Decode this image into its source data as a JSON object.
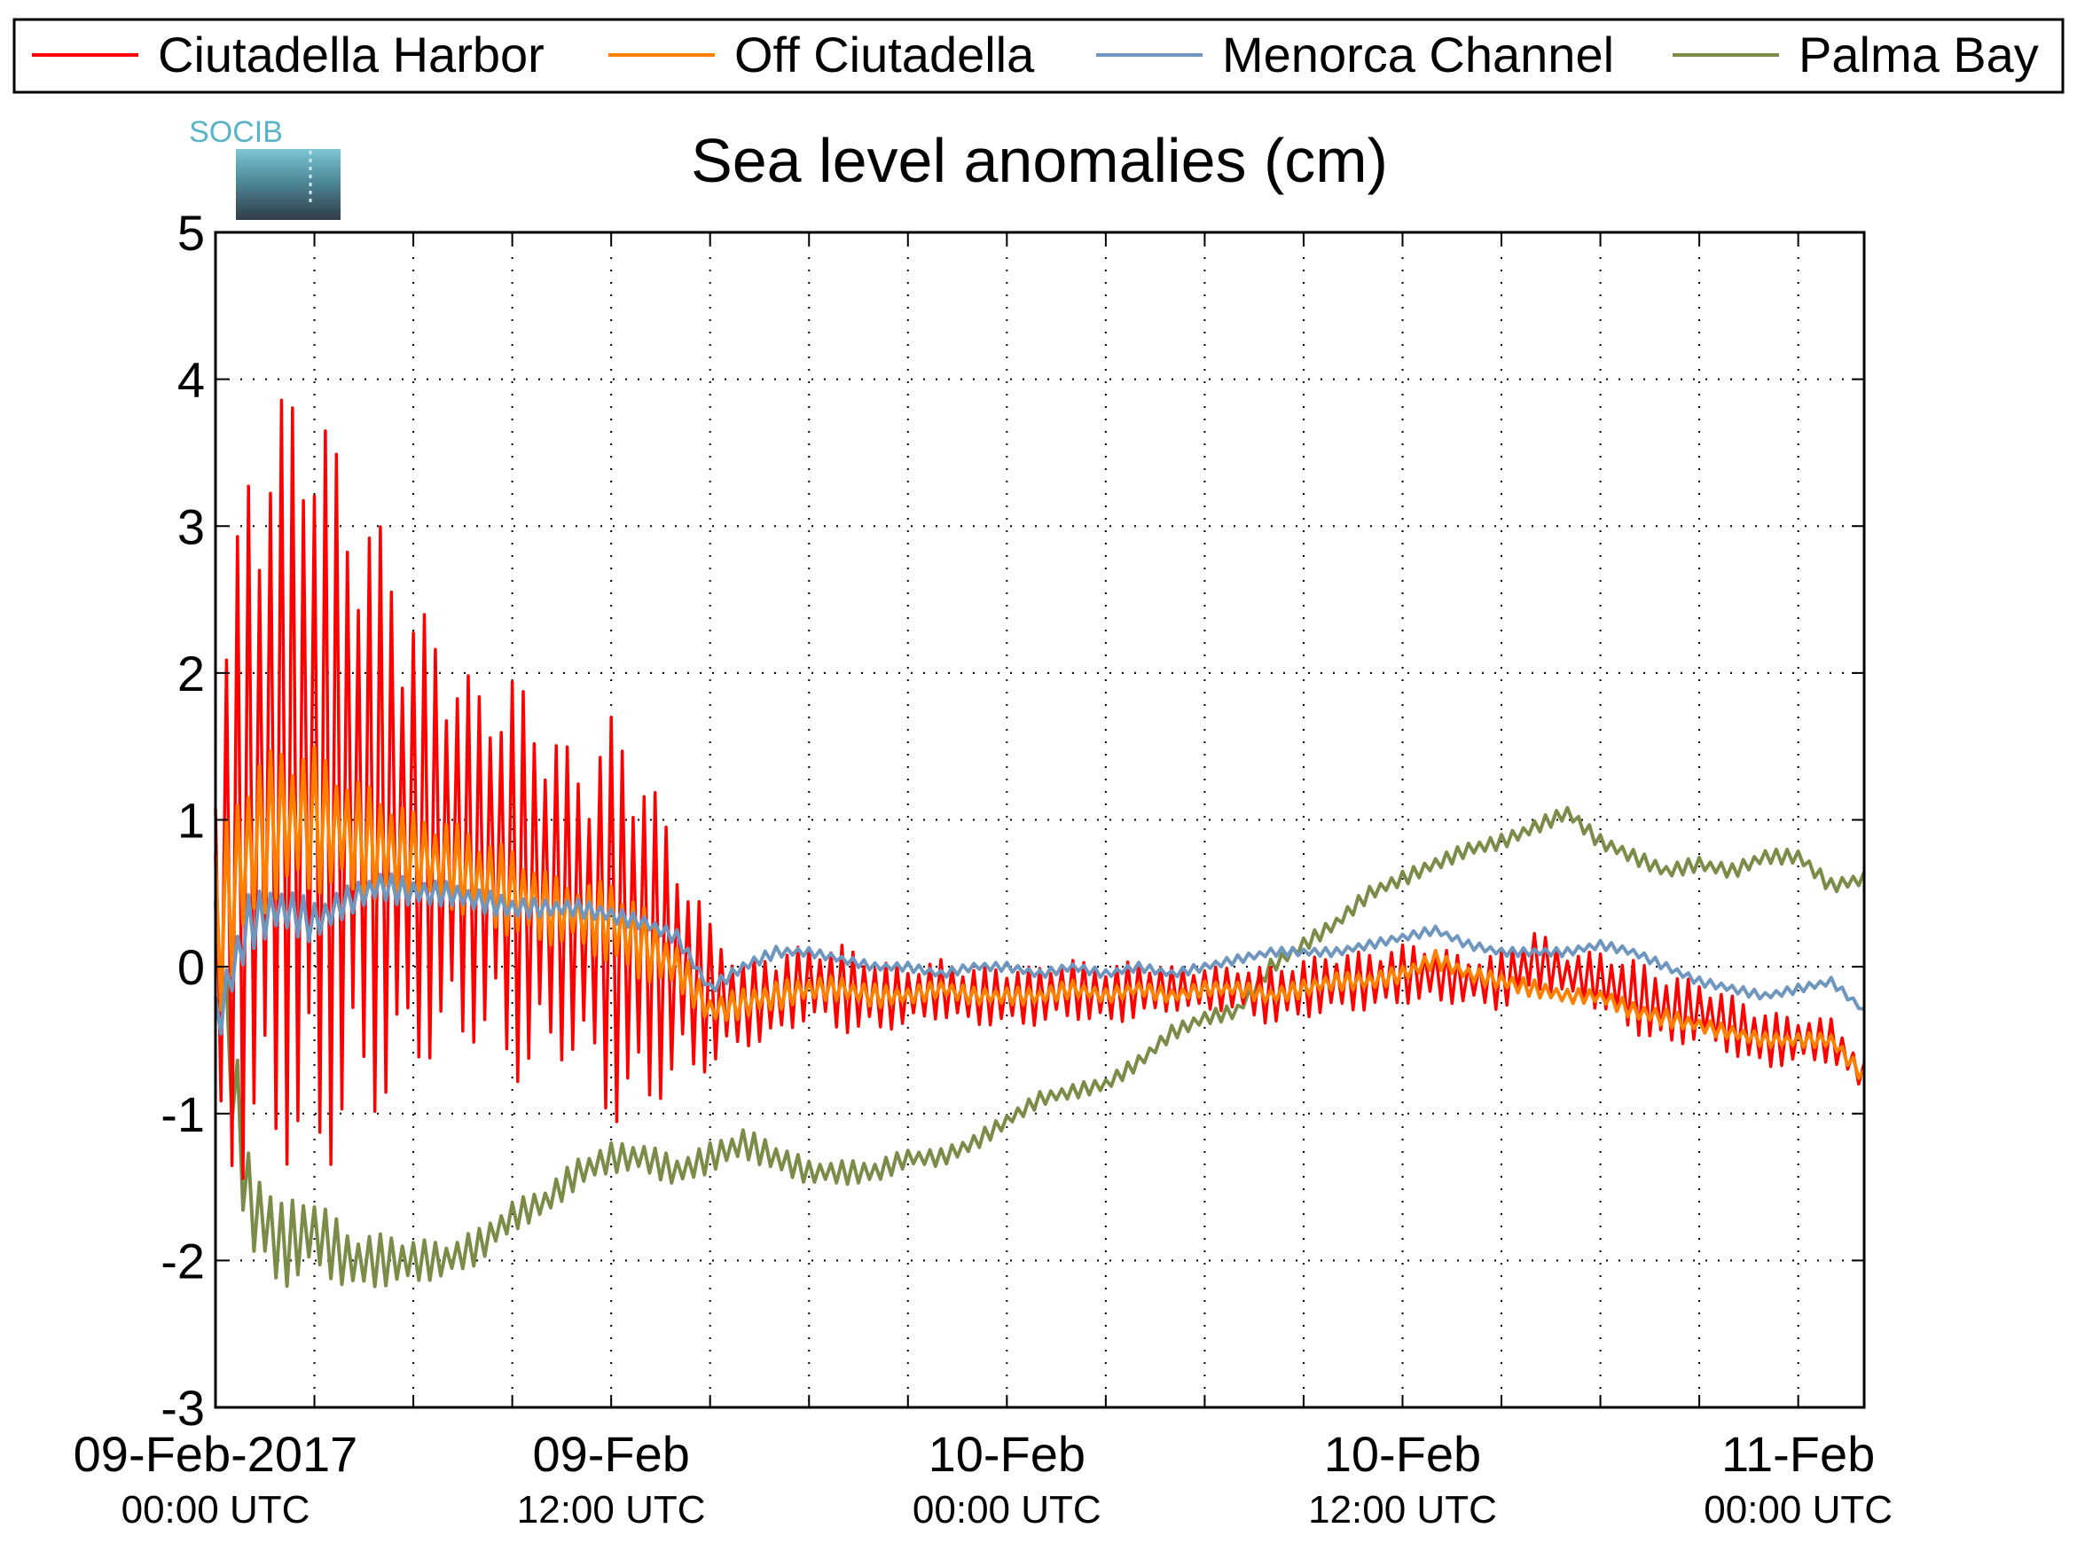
{
  "chart_data": {
    "type": "line",
    "title": "Sea level anomalies (cm)",
    "logo_text": "SOCIB",
    "xlabel": "",
    "ylabel": "",
    "ylim": [
      -3,
      5
    ],
    "yticks": [
      -3,
      -2,
      -1,
      0,
      1,
      2,
      3,
      4,
      5
    ],
    "xlim": [
      "2017-02-09 00:00",
      "2017-02-11 02:00"
    ],
    "xticks_major": [
      {
        "time": "2017-02-09 00:00",
        "date_label": "09-Feb-2017",
        "time_label": "00:00 UTC"
      },
      {
        "time": "2017-02-09 12:00",
        "date_label": "09-Feb",
        "time_label": "12:00 UTC"
      },
      {
        "time": "2017-02-10 00:00",
        "date_label": "10-Feb",
        "time_label": "00:00 UTC"
      },
      {
        "time": "2017-02-10 12:00",
        "date_label": "10-Feb",
        "time_label": "12:00 UTC"
      },
      {
        "time": "2017-02-11 00:00",
        "date_label": "11-Feb",
        "time_label": "00:00 UTC"
      }
    ],
    "grid": true,
    "legend_position": "top",
    "series": [
      {
        "name": "Ciutadella Harbor",
        "color": "#ff0000",
        "x": [
          "2017-02-09 00:00",
          "2017-02-09 01:00",
          "2017-02-09 02:00",
          "2017-02-09 03:00",
          "2017-02-09 04:00",
          "2017-02-09 05:00",
          "2017-02-09 06:00",
          "2017-02-09 07:00",
          "2017-02-09 08:00",
          "2017-02-09 09:00",
          "2017-02-09 10:00",
          "2017-02-09 11:00",
          "2017-02-09 12:00",
          "2017-02-09 13:00",
          "2017-02-09 14:00",
          "2017-02-09 15:00",
          "2017-02-09 16:00",
          "2017-02-09 17:00",
          "2017-02-09 18:00",
          "2017-02-09 19:00",
          "2017-02-09 20:00",
          "2017-02-09 21:00",
          "2017-02-09 22:00",
          "2017-02-09 23:00",
          "2017-02-10 00:00",
          "2017-02-10 01:00",
          "2017-02-10 02:00",
          "2017-02-10 03:00",
          "2017-02-10 04:00",
          "2017-02-10 05:00",
          "2017-02-10 06:00",
          "2017-02-10 07:00",
          "2017-02-10 08:00",
          "2017-02-10 09:00",
          "2017-02-10 10:00",
          "2017-02-10 11:00",
          "2017-02-10 12:00",
          "2017-02-10 13:00",
          "2017-02-10 14:00",
          "2017-02-10 15:00",
          "2017-02-10 16:00",
          "2017-02-10 17:00",
          "2017-02-10 18:00",
          "2017-02-10 19:00",
          "2017-02-10 20:00",
          "2017-02-10 21:00",
          "2017-02-10 22:00",
          "2017-02-10 23:00",
          "2017-02-11 00:00",
          "2017-02-11 01:00",
          "2017-02-11 02:00"
        ],
        "y": [
          0.2,
          1.0,
          1.3,
          1.2,
          1.1,
          1.0,
          0.9,
          0.8,
          0.7,
          0.6,
          0.5,
          0.4,
          0.3,
          0.2,
          0.0,
          -0.2,
          -0.25,
          -0.2,
          -0.1,
          -0.15,
          -0.2,
          -0.2,
          -0.15,
          -0.2,
          -0.2,
          -0.2,
          -0.15,
          -0.2,
          -0.15,
          -0.15,
          -0.15,
          -0.15,
          -0.2,
          -0.15,
          -0.1,
          -0.1,
          -0.05,
          -0.05,
          -0.1,
          -0.1,
          0.05,
          -0.05,
          -0.1,
          -0.2,
          -0.3,
          -0.3,
          -0.4,
          -0.5,
          -0.5,
          -0.5,
          -0.75
        ],
        "amplitude": [
          1.6,
          2.5,
          2.6,
          2.8,
          2.2,
          2.0,
          1.6,
          1.4,
          1.2,
          1.4,
          1.2,
          1.0,
          1.4,
          1.2,
          0.8,
          0.5,
          0.3,
          0.3,
          0.25,
          0.3,
          0.25,
          0.2,
          0.2,
          0.2,
          0.2,
          0.2,
          0.2,
          0.2,
          0.2,
          0.15,
          0.15,
          0.15,
          0.2,
          0.2,
          0.2,
          0.2,
          0.2,
          0.2,
          0.15,
          0.2,
          0.2,
          0.15,
          0.2,
          0.25,
          0.25,
          0.2,
          0.2,
          0.2,
          0.15,
          0.15,
          0.1
        ]
      },
      {
        "name": "Off Ciutadella",
        "color": "#ff8000",
        "x": [
          "2017-02-09 00:00",
          "2017-02-09 01:00",
          "2017-02-09 02:00",
          "2017-02-09 03:00",
          "2017-02-09 04:00",
          "2017-02-09 05:00",
          "2017-02-09 06:00",
          "2017-02-09 07:00",
          "2017-02-09 08:00",
          "2017-02-09 09:00",
          "2017-02-09 10:00",
          "2017-02-09 11:00",
          "2017-02-09 12:00",
          "2017-02-09 13:00",
          "2017-02-09 14:00",
          "2017-02-09 15:00",
          "2017-02-09 16:00",
          "2017-02-09 17:00",
          "2017-02-09 18:00",
          "2017-02-09 19:00",
          "2017-02-09 20:00",
          "2017-02-09 21:00",
          "2017-02-09 22:00",
          "2017-02-09 23:00",
          "2017-02-10 00:00",
          "2017-02-10 01:00",
          "2017-02-10 02:00",
          "2017-02-10 03:00",
          "2017-02-10 04:00",
          "2017-02-10 05:00",
          "2017-02-10 06:00",
          "2017-02-10 07:00",
          "2017-02-10 08:00",
          "2017-02-10 09:00",
          "2017-02-10 10:00",
          "2017-02-10 11:00",
          "2017-02-10 12:00",
          "2017-02-10 13:00",
          "2017-02-10 14:00",
          "2017-02-10 15:00",
          "2017-02-10 16:00",
          "2017-02-10 17:00",
          "2017-02-10 18:00",
          "2017-02-10 19:00",
          "2017-02-10 20:00",
          "2017-02-10 21:00",
          "2017-02-10 22:00",
          "2017-02-10 23:00",
          "2017-02-11 00:00",
          "2017-02-11 01:00",
          "2017-02-11 02:00"
        ],
        "y": [
          0.2,
          0.8,
          1.0,
          1.0,
          0.9,
          0.8,
          0.75,
          0.7,
          0.6,
          0.5,
          0.4,
          0.35,
          0.3,
          0.15,
          0.0,
          -0.3,
          -0.25,
          -0.2,
          -0.15,
          -0.15,
          -0.2,
          -0.2,
          -0.15,
          -0.2,
          -0.2,
          -0.2,
          -0.15,
          -0.2,
          -0.15,
          -0.2,
          -0.15,
          -0.15,
          -0.2,
          -0.15,
          -0.1,
          -0.1,
          -0.05,
          0.05,
          -0.05,
          -0.1,
          -0.15,
          -0.2,
          -0.2,
          -0.3,
          -0.35,
          -0.4,
          -0.45,
          -0.5,
          -0.5,
          -0.5,
          -0.75
        ],
        "amplitude": [
          0.6,
          0.6,
          0.5,
          0.5,
          0.4,
          0.4,
          0.3,
          0.3,
          0.3,
          0.3,
          0.25,
          0.2,
          0.3,
          0.25,
          0.15,
          0.1,
          0.1,
          0.1,
          0.08,
          0.08,
          0.08,
          0.06,
          0.06,
          0.06,
          0.06,
          0.06,
          0.06,
          0.05,
          0.05,
          0.05,
          0.05,
          0.05,
          0.06,
          0.06,
          0.06,
          0.06,
          0.06,
          0.06,
          0.05,
          0.06,
          0.06,
          0.05,
          0.05,
          0.06,
          0.06,
          0.05,
          0.05,
          0.05,
          0.05,
          0.05,
          0.05
        ]
      },
      {
        "name": "Menorca Channel",
        "color": "#6e96be",
        "x": [
          "2017-02-09 00:00",
          "2017-02-09 01:00",
          "2017-02-09 02:00",
          "2017-02-09 03:00",
          "2017-02-09 04:00",
          "2017-02-09 05:00",
          "2017-02-09 06:00",
          "2017-02-09 07:00",
          "2017-02-09 08:00",
          "2017-02-09 09:00",
          "2017-02-09 10:00",
          "2017-02-09 11:00",
          "2017-02-09 12:00",
          "2017-02-09 13:00",
          "2017-02-09 14:00",
          "2017-02-09 15:00",
          "2017-02-09 16:00",
          "2017-02-09 17:00",
          "2017-02-09 18:00",
          "2017-02-09 19:00",
          "2017-02-09 20:00",
          "2017-02-09 21:00",
          "2017-02-09 22:00",
          "2017-02-09 23:00",
          "2017-02-10 00:00",
          "2017-02-10 01:00",
          "2017-02-10 02:00",
          "2017-02-10 03:00",
          "2017-02-10 04:00",
          "2017-02-10 05:00",
          "2017-02-10 06:00",
          "2017-02-10 07:00",
          "2017-02-10 08:00",
          "2017-02-10 09:00",
          "2017-02-10 10:00",
          "2017-02-10 11:00",
          "2017-02-10 12:00",
          "2017-02-10 13:00",
          "2017-02-10 14:00",
          "2017-02-10 15:00",
          "2017-02-10 16:00",
          "2017-02-10 17:00",
          "2017-02-10 18:00",
          "2017-02-10 19:00",
          "2017-02-10 20:00",
          "2017-02-10 21:00",
          "2017-02-10 22:00",
          "2017-02-10 23:00",
          "2017-02-11 00:00",
          "2017-02-11 01:00",
          "2017-02-11 02:00"
        ],
        "y": [
          -0.4,
          0.3,
          0.4,
          0.3,
          0.45,
          0.55,
          0.5,
          0.5,
          0.45,
          0.4,
          0.4,
          0.4,
          0.35,
          0.3,
          0.2,
          -0.15,
          0.0,
          0.1,
          0.1,
          0.05,
          0.0,
          0.0,
          -0.05,
          0.0,
          0.0,
          -0.05,
          0.0,
          -0.05,
          0.0,
          -0.05,
          0.0,
          0.05,
          0.1,
          0.1,
          0.1,
          0.15,
          0.2,
          0.25,
          0.15,
          0.1,
          0.1,
          0.1,
          0.15,
          0.1,
          0.0,
          -0.1,
          -0.15,
          -0.2,
          -0.15,
          -0.1,
          -0.3
        ],
        "amplitude": [
          0.2,
          0.2,
          0.15,
          0.15,
          0.1,
          0.1,
          0.1,
          0.08,
          0.08,
          0.08,
          0.06,
          0.06,
          0.06,
          0.05,
          0.05,
          0.04,
          0.04,
          0.04,
          0.03,
          0.03,
          0.03,
          0.03,
          0.03,
          0.03,
          0.03,
          0.03,
          0.03,
          0.03,
          0.03,
          0.03,
          0.03,
          0.03,
          0.03,
          0.03,
          0.03,
          0.03,
          0.03,
          0.03,
          0.03,
          0.03,
          0.03,
          0.03,
          0.03,
          0.03,
          0.03,
          0.03,
          0.03,
          0.03,
          0.03,
          0.03,
          0.02
        ]
      },
      {
        "name": "Palma Bay",
        "color": "#7a8c48",
        "x": [
          "2017-02-09 00:00",
          "2017-02-09 01:00",
          "2017-02-09 02:00",
          "2017-02-09 03:00",
          "2017-02-09 04:00",
          "2017-02-09 05:00",
          "2017-02-09 06:00",
          "2017-02-09 07:00",
          "2017-02-09 08:00",
          "2017-02-09 09:00",
          "2017-02-09 10:00",
          "2017-02-09 11:00",
          "2017-02-09 12:00",
          "2017-02-09 13:00",
          "2017-02-09 14:00",
          "2017-02-09 15:00",
          "2017-02-09 16:00",
          "2017-02-09 17:00",
          "2017-02-09 18:00",
          "2017-02-09 19:00",
          "2017-02-09 20:00",
          "2017-02-09 21:00",
          "2017-02-09 22:00",
          "2017-02-09 23:00",
          "2017-02-10 00:00",
          "2017-02-10 01:00",
          "2017-02-10 02:00",
          "2017-02-10 03:00",
          "2017-02-10 04:00",
          "2017-02-10 05:00",
          "2017-02-10 06:00",
          "2017-02-10 07:00",
          "2017-02-10 08:00",
          "2017-02-10 09:00",
          "2017-02-10 10:00",
          "2017-02-10 11:00",
          "2017-02-10 12:00",
          "2017-02-10 13:00",
          "2017-02-10 14:00",
          "2017-02-10 15:00",
          "2017-02-10 16:00",
          "2017-02-10 17:00",
          "2017-02-10 18:00",
          "2017-02-10 19:00",
          "2017-02-10 20:00",
          "2017-02-10 21:00",
          "2017-02-10 22:00",
          "2017-02-10 23:00",
          "2017-02-11 00:00",
          "2017-02-11 01:00",
          "2017-02-11 02:00"
        ],
        "y": [
          0.2,
          -1.6,
          -1.9,
          -1.8,
          -2.0,
          -2.0,
          -2.0,
          -2.0,
          -1.9,
          -1.7,
          -1.6,
          -1.4,
          -1.3,
          -1.3,
          -1.4,
          -1.3,
          -1.2,
          -1.3,
          -1.4,
          -1.4,
          -1.4,
          -1.3,
          -1.3,
          -1.2,
          -1.05,
          -0.9,
          -0.85,
          -0.8,
          -0.65,
          -0.45,
          -0.35,
          -0.3,
          0.0,
          0.15,
          0.3,
          0.5,
          0.6,
          0.7,
          0.8,
          0.85,
          0.95,
          1.05,
          0.85,
          0.75,
          0.65,
          0.7,
          0.65,
          0.75,
          0.75,
          0.55,
          0.6
        ],
        "amplitude": [
          0.4,
          0.35,
          0.3,
          0.25,
          0.2,
          0.18,
          0.15,
          0.12,
          0.12,
          0.1,
          0.1,
          0.1,
          0.1,
          0.1,
          0.1,
          0.1,
          0.1,
          0.1,
          0.08,
          0.08,
          0.08,
          0.06,
          0.06,
          0.06,
          0.05,
          0.05,
          0.05,
          0.05,
          0.05,
          0.05,
          0.05,
          0.05,
          0.05,
          0.05,
          0.05,
          0.05,
          0.05,
          0.05,
          0.05,
          0.05,
          0.05,
          0.05,
          0.05,
          0.05,
          0.05,
          0.05,
          0.05,
          0.05,
          0.05,
          0.05,
          0.05
        ]
      }
    ]
  }
}
